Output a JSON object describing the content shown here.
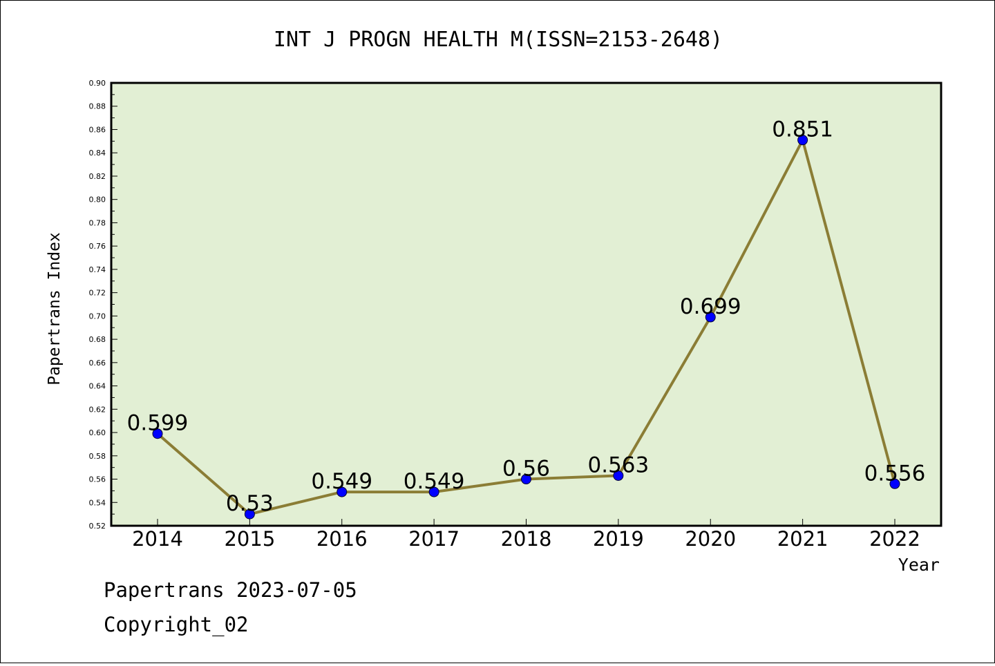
{
  "chart_data": {
    "type": "line",
    "title": "INT J PROGN HEALTH M(ISSN=2153-2648)",
    "xlabel": "Year",
    "ylabel": "Papertrans Index",
    "categories": [
      "2014",
      "2015",
      "2016",
      "2017",
      "2018",
      "2019",
      "2020",
      "2021",
      "2022"
    ],
    "series": [
      {
        "values": [
          0.599,
          0.53,
          0.549,
          0.549,
          0.56,
          0.563,
          0.699,
          0.851,
          0.556
        ],
        "labels": [
          "0.599",
          "0.53",
          "0.549",
          "0.549",
          "0.56",
          "0.563",
          "0.699",
          "0.851",
          "0.556"
        ]
      }
    ],
    "ylim": [
      0.52,
      0.9
    ],
    "yticks": [
      "0.52",
      "0.54",
      "0.56",
      "0.58",
      "0.60",
      "0.62",
      "0.64",
      "0.66",
      "0.68",
      "0.70",
      "0.72",
      "0.74",
      "0.76",
      "0.78",
      "0.80",
      "0.82",
      "0.84",
      "0.86",
      "0.88",
      "0.90"
    ],
    "grid": false,
    "colors": {
      "plot_background": "#e2efd4",
      "line": "#8b7d35",
      "marker": "#0000ff"
    }
  },
  "footer": {
    "line1": "Papertrans 2023-07-05",
    "line2": "Copyright_02"
  }
}
